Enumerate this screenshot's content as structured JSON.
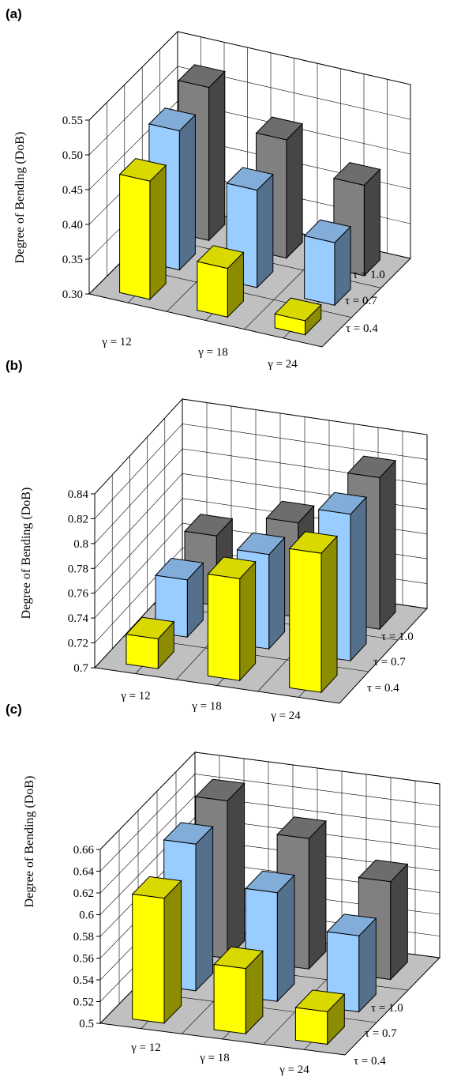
{
  "chart_data": [
    {
      "panel": "(a)",
      "type": "bar",
      "ylabel": "Degree of Bending (DoB)",
      "ylim": [
        0.3,
        0.55
      ],
      "yticks": [
        "0.30",
        "0.35",
        "0.40",
        "0.45",
        "0.50",
        "0.55"
      ],
      "categories": [
        "γ = 12",
        "γ = 18",
        "γ = 24"
      ],
      "series": [
        {
          "name": "τ = 0.4",
          "values": [
            0.47,
            0.37,
            0.32
          ]
        },
        {
          "name": "τ = 0.7",
          "values": [
            0.5,
            0.44,
            0.39
          ]
        },
        {
          "name": "τ = 1.0",
          "values": [
            0.52,
            0.47,
            0.43
          ]
        }
      ]
    },
    {
      "panel": "(b)",
      "type": "bar",
      "ylabel": "Degree of Bending (DoB)",
      "ylim": [
        0.7,
        0.84
      ],
      "yticks": [
        "0.7",
        "0.72",
        "0.74",
        "0.76",
        "0.78",
        "0.8",
        "0.82",
        "0.84"
      ],
      "categories": [
        "γ = 12",
        "γ = 18",
        "γ = 24"
      ],
      "series": [
        {
          "name": "τ = 0.4",
          "values": [
            0.724,
            0.782,
            0.812
          ]
        },
        {
          "name": "τ = 0.7",
          "values": [
            0.746,
            0.776,
            0.818
          ]
        },
        {
          "name": "τ = 1.0",
          "values": [
            0.756,
            0.776,
            0.822
          ]
        }
      ]
    },
    {
      "panel": "(c)",
      "type": "bar",
      "ylabel": "Degree of Bending (DoB)",
      "ylim": [
        0.5,
        0.66
      ],
      "yticks": [
        "0.5",
        "0.52",
        "0.54",
        "0.56",
        "0.58",
        "0.6",
        "0.62",
        "0.64",
        "0.66"
      ],
      "categories": [
        "γ = 12",
        "γ = 18",
        "γ = 24"
      ],
      "series": [
        {
          "name": "τ = 0.4",
          "values": [
            0.615,
            0.56,
            0.53
          ]
        },
        {
          "name": "τ = 0.7",
          "values": [
            0.635,
            0.6,
            0.57
          ]
        },
        {
          "name": "τ = 1.0",
          "values": [
            0.645,
            0.62,
            0.59
          ]
        }
      ]
    }
  ],
  "colors": {
    "front_series": "#ffff00",
    "middle_series": "#99ccff",
    "back_series": "#808080",
    "floor": "#c0c0c0"
  }
}
